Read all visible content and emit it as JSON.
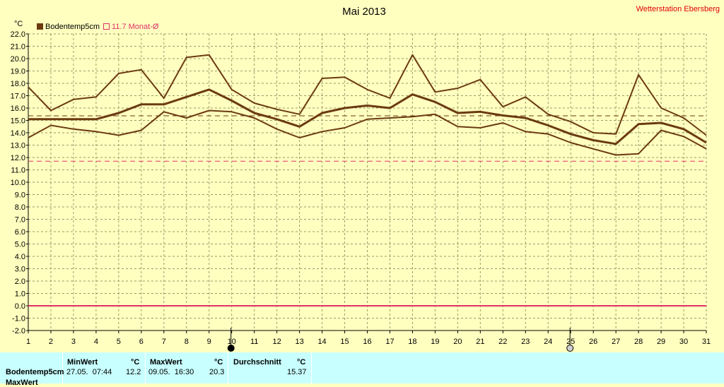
{
  "header": {
    "title": "Mai 2013",
    "station": "Wetterstation Ebersberg"
  },
  "legend": {
    "series_label": "Bodentemp5cm",
    "avg_label": "11.7 Monat-Ø"
  },
  "chart_data": {
    "type": "line",
    "title": "Mai 2013",
    "ylabel": "°C",
    "xlabel": "",
    "ylim": [
      -2.0,
      22.0
    ],
    "y_step": 1.0,
    "grid": true,
    "legend_position": "top-left",
    "x": [
      1,
      2,
      3,
      4,
      5,
      6,
      7,
      8,
      9,
      10,
      11,
      12,
      13,
      14,
      15,
      16,
      17,
      18,
      19,
      20,
      21,
      22,
      23,
      24,
      25,
      26,
      27,
      28,
      29,
      30,
      31
    ],
    "series": [
      {
        "name": "Bodentemp5cm",
        "role": "max",
        "color": "#6b3a10",
        "values": [
          17.7,
          15.8,
          16.7,
          16.9,
          18.8,
          19.1,
          16.8,
          20.1,
          20.3,
          17.5,
          16.4,
          15.9,
          15.5,
          18.4,
          18.5,
          17.5,
          16.8,
          20.3,
          17.3,
          17.6,
          18.3,
          16.1,
          16.9,
          15.5,
          14.9,
          14.0,
          13.9,
          18.7,
          16.0,
          15.2,
          13.8
        ]
      },
      {
        "name": "Bodentemp5cm",
        "role": "mean",
        "color": "#6b3a10",
        "values": [
          15.1,
          15.1,
          15.1,
          15.1,
          15.6,
          16.3,
          16.3,
          16.9,
          17.5,
          16.6,
          15.6,
          15.1,
          14.5,
          15.6,
          16.0,
          16.2,
          16.0,
          17.1,
          16.5,
          15.6,
          15.7,
          15.4,
          15.2,
          14.6,
          13.9,
          13.4,
          13.1,
          14.7,
          14.8,
          14.3,
          13.2
        ]
      },
      {
        "name": "Bodentemp5cm",
        "role": "min",
        "color": "#6b3a10",
        "values": [
          13.6,
          14.6,
          14.3,
          14.1,
          13.8,
          14.2,
          15.7,
          15.2,
          15.8,
          15.7,
          15.2,
          14.3,
          13.6,
          14.1,
          14.4,
          15.1,
          15.2,
          15.3,
          15.5,
          14.5,
          14.4,
          14.8,
          14.1,
          13.9,
          13.2,
          12.7,
          12.2,
          12.3,
          14.2,
          13.7,
          12.7
        ]
      }
    ],
    "reference_lines": [
      {
        "label": "Durchschnitt",
        "value": 15.37,
        "color": "#6b3a10",
        "style": "dashed"
      },
      {
        "label": "11.7 Monat-Ø",
        "value": 11.7,
        "color": "#e0306a",
        "style": "dashed"
      },
      {
        "label": "",
        "value": 0.0,
        "color": "#e0306a",
        "style": "solid"
      }
    ],
    "moon_markers": [
      {
        "day": 10,
        "phase": "new-moon"
      },
      {
        "day": 25,
        "phase": "full-moon"
      }
    ]
  },
  "stats": {
    "col_min": "MinWert",
    "col_max": "MaxWert",
    "col_avg": "Durchschnitt",
    "unit": "°C",
    "rows": [
      {
        "name": "Bodentemp5cm",
        "min_time": "27.05.  07:44",
        "min_val": "12.2",
        "max_time": "09.05.  16:30",
        "max_val": "20.3",
        "avg_val": "15.37"
      },
      {
        "name": "MaxWert",
        "min_time": "",
        "min_val": "",
        "max_time": "",
        "max_val": "",
        "avg_val": ""
      }
    ]
  }
}
